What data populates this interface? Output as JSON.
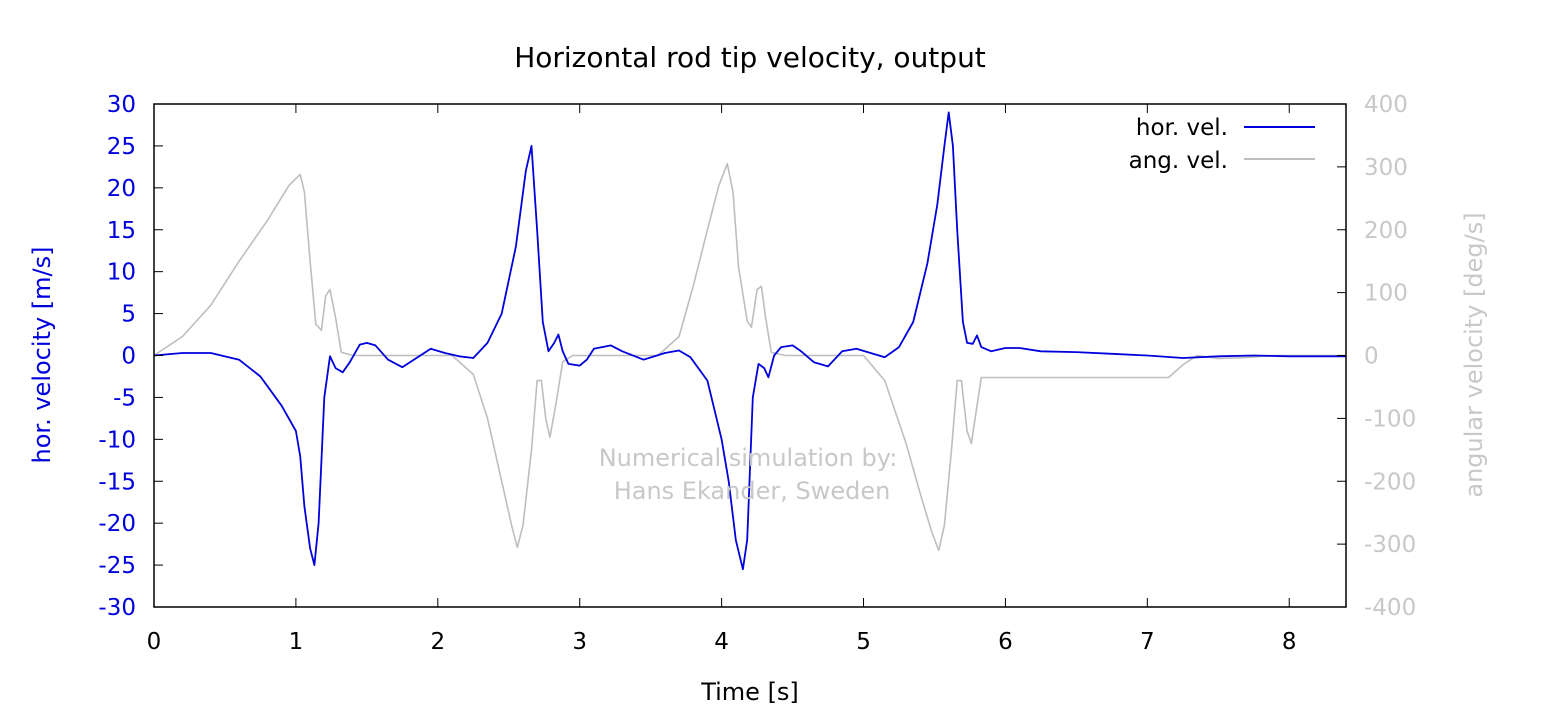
{
  "chart_data": {
    "type": "line",
    "title": "Horizontal rod tip velocity, output",
    "xlabel": "Time [s]",
    "ylabel": "hor. velocity [m/s]",
    "y2label": "angular velocity [deg/s]",
    "xlim": [
      0,
      8.4
    ],
    "ylim": [
      -30,
      30
    ],
    "y2lim": [
      -400,
      400
    ],
    "x_ticks": [
      "0",
      "1",
      "2",
      "3",
      "4",
      "5",
      "6",
      "7",
      "8"
    ],
    "y_ticks": [
      "30",
      "25",
      "20",
      "15",
      "10",
      "5",
      "0",
      "-5",
      "-10",
      "-15",
      "-20",
      "-25",
      "-30"
    ],
    "y2_ticks": [
      "400",
      "300",
      "200",
      "100",
      "0",
      "-100",
      "-200",
      "-300",
      "-400"
    ],
    "grid": false,
    "legend_position": "top-right",
    "annotation": [
      "Numerical simulation by:",
      "Hans Ekander, Sweden"
    ],
    "series": [
      {
        "name": "hor. vel.",
        "axis": "left",
        "color": "#0000dd",
        "points": [
          [
            0,
            0
          ],
          [
            0.2,
            0.3
          ],
          [
            0.4,
            0.3
          ],
          [
            0.6,
            -0.5
          ],
          [
            0.75,
            -2.5
          ],
          [
            0.9,
            -6
          ],
          [
            1.0,
            -9
          ],
          [
            1.03,
            -12
          ],
          [
            1.06,
            -18
          ],
          [
            1.1,
            -23
          ],
          [
            1.13,
            -25
          ],
          [
            1.16,
            -20
          ],
          [
            1.2,
            -5
          ],
          [
            1.24,
            -0.1
          ],
          [
            1.28,
            -1.5
          ],
          [
            1.33,
            -2
          ],
          [
            1.38,
            -0.8
          ],
          [
            1.45,
            1.3
          ],
          [
            1.5,
            1.5
          ],
          [
            1.56,
            1.2
          ],
          [
            1.65,
            -0.5
          ],
          [
            1.75,
            -1.4
          ],
          [
            1.85,
            -0.3
          ],
          [
            1.95,
            0.8
          ],
          [
            2.05,
            0.3
          ],
          [
            2.15,
            -0.1
          ],
          [
            2.25,
            -0.3
          ],
          [
            2.35,
            1.5
          ],
          [
            2.45,
            5
          ],
          [
            2.55,
            13
          ],
          [
            2.62,
            22
          ],
          [
            2.66,
            25
          ],
          [
            2.7,
            15
          ],
          [
            2.74,
            4
          ],
          [
            2.78,
            0.5
          ],
          [
            2.82,
            1.5
          ],
          [
            2.85,
            2.5
          ],
          [
            2.88,
            0.5
          ],
          [
            2.92,
            -1
          ],
          [
            3.0,
            -1.2
          ],
          [
            3.05,
            -0.5
          ],
          [
            3.1,
            0.8
          ],
          [
            3.22,
            1.2
          ],
          [
            3.3,
            0.5
          ],
          [
            3.45,
            -0.5
          ],
          [
            3.6,
            0.3
          ],
          [
            3.7,
            0.6
          ],
          [
            3.78,
            -0.2
          ],
          [
            3.9,
            -3
          ],
          [
            4.0,
            -10
          ],
          [
            4.05,
            -15
          ],
          [
            4.1,
            -22
          ],
          [
            4.15,
            -25.5
          ],
          [
            4.18,
            -22
          ],
          [
            4.22,
            -5
          ],
          [
            4.26,
            -1
          ],
          [
            4.3,
            -1.5
          ],
          [
            4.33,
            -2.6
          ],
          [
            4.37,
            0
          ],
          [
            4.42,
            1
          ],
          [
            4.5,
            1.2
          ],
          [
            4.56,
            0.5
          ],
          [
            4.65,
            -0.8
          ],
          [
            4.75,
            -1.3
          ],
          [
            4.85,
            0.5
          ],
          [
            4.95,
            0.8
          ],
          [
            5.05,
            0.3
          ],
          [
            5.15,
            -0.2
          ],
          [
            5.25,
            1
          ],
          [
            5.35,
            4
          ],
          [
            5.45,
            11
          ],
          [
            5.52,
            18
          ],
          [
            5.57,
            25
          ],
          [
            5.6,
            29
          ],
          [
            5.63,
            25
          ],
          [
            5.66,
            15
          ],
          [
            5.7,
            4
          ],
          [
            5.73,
            1.5
          ],
          [
            5.77,
            1.4
          ],
          [
            5.8,
            2.4
          ],
          [
            5.83,
            1
          ],
          [
            5.9,
            0.5
          ],
          [
            6.0,
            0.9
          ],
          [
            6.1,
            0.9
          ],
          [
            6.25,
            0.5
          ],
          [
            6.5,
            0.4
          ],
          [
            6.75,
            0.2
          ],
          [
            7.0,
            0
          ],
          [
            7.25,
            -0.3
          ],
          [
            7.5,
            -0.1
          ],
          [
            7.75,
            0
          ],
          [
            8.0,
            -0.1
          ],
          [
            8.4,
            -0.1
          ]
        ]
      },
      {
        "name": "ang. vel.",
        "axis": "right",
        "color": "#bebebe",
        "points": [
          [
            0,
            0
          ],
          [
            0.2,
            30
          ],
          [
            0.4,
            80
          ],
          [
            0.6,
            150
          ],
          [
            0.8,
            215
          ],
          [
            0.95,
            270
          ],
          [
            1.03,
            288
          ],
          [
            1.06,
            260
          ],
          [
            1.1,
            150
          ],
          [
            1.14,
            50
          ],
          [
            1.18,
            40
          ],
          [
            1.21,
            95
          ],
          [
            1.24,
            105
          ],
          [
            1.28,
            60
          ],
          [
            1.32,
            5
          ],
          [
            1.4,
            0
          ],
          [
            2.1,
            0
          ],
          [
            2.25,
            -30
          ],
          [
            2.35,
            -100
          ],
          [
            2.45,
            -200
          ],
          [
            2.52,
            -270
          ],
          [
            2.56,
            -305
          ],
          [
            2.6,
            -270
          ],
          [
            2.66,
            -150
          ],
          [
            2.7,
            -40
          ],
          [
            2.73,
            -40
          ],
          [
            2.76,
            -100
          ],
          [
            2.79,
            -130
          ],
          [
            2.83,
            -80
          ],
          [
            2.88,
            -10
          ],
          [
            2.95,
            0
          ],
          [
            3.55,
            0
          ],
          [
            3.7,
            30
          ],
          [
            3.8,
            110
          ],
          [
            3.9,
            200
          ],
          [
            3.98,
            270
          ],
          [
            4.04,
            305
          ],
          [
            4.08,
            260
          ],
          [
            4.12,
            140
          ],
          [
            4.18,
            55
          ],
          [
            4.21,
            45
          ],
          [
            4.25,
            105
          ],
          [
            4.28,
            110
          ],
          [
            4.31,
            60
          ],
          [
            4.35,
            5
          ],
          [
            4.45,
            0
          ],
          [
            5.0,
            0
          ],
          [
            5.15,
            -40
          ],
          [
            5.3,
            -140
          ],
          [
            5.4,
            -220
          ],
          [
            5.48,
            -280
          ],
          [
            5.53,
            -310
          ],
          [
            5.57,
            -270
          ],
          [
            5.62,
            -150
          ],
          [
            5.66,
            -40
          ],
          [
            5.69,
            -40
          ],
          [
            5.73,
            -120
          ],
          [
            5.76,
            -140
          ],
          [
            5.8,
            -80
          ],
          [
            5.83,
            -35
          ],
          [
            6.0,
            -35
          ],
          [
            7.15,
            -35
          ],
          [
            7.25,
            -15
          ],
          [
            7.35,
            0
          ],
          [
            7.5,
            -5
          ],
          [
            7.7,
            -3
          ],
          [
            7.9,
            0
          ],
          [
            8.1,
            0
          ],
          [
            8.4,
            0
          ]
        ]
      }
    ]
  }
}
